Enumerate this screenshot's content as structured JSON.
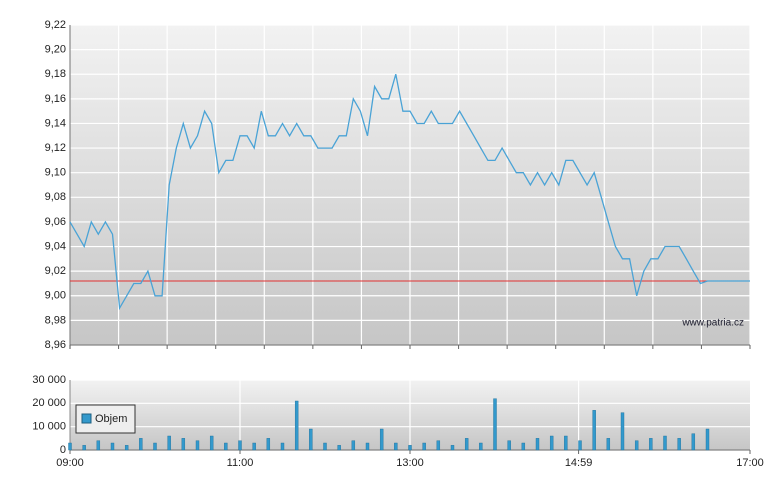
{
  "chart_data": [
    {
      "type": "line",
      "x": [
        "09:00",
        "09:05",
        "09:10",
        "09:15",
        "09:20",
        "09:25",
        "09:30",
        "09:35",
        "09:40",
        "09:45",
        "09:50",
        "09:55",
        "10:00",
        "10:05",
        "10:10",
        "10:15",
        "10:20",
        "10:25",
        "10:30",
        "10:35",
        "10:40",
        "10:45",
        "10:50",
        "10:55",
        "11:00",
        "11:05",
        "11:10",
        "11:15",
        "11:20",
        "11:25",
        "11:30",
        "11:35",
        "11:40",
        "11:45",
        "11:50",
        "11:55",
        "12:00",
        "12:05",
        "12:10",
        "12:15",
        "12:20",
        "12:25",
        "12:30",
        "12:35",
        "12:40",
        "12:45",
        "12:50",
        "12:55",
        "13:00",
        "13:05",
        "13:10",
        "13:15",
        "13:20",
        "13:25",
        "13:30",
        "13:35",
        "13:40",
        "13:45",
        "13:50",
        "13:55",
        "14:00",
        "14:05",
        "14:10",
        "14:15",
        "14:20",
        "14:25",
        "14:30",
        "14:35",
        "14:40",
        "14:45",
        "14:50",
        "14:55",
        "15:00",
        "15:05",
        "15:10",
        "15:15",
        "15:20",
        "15:25",
        "15:30",
        "15:35",
        "15:40",
        "15:45",
        "15:50",
        "15:55",
        "16:00",
        "16:05",
        "16:10",
        "16:15",
        "16:20",
        "16:25",
        "16:30",
        "17:00"
      ],
      "series": [
        {
          "color": "#4aa3d6",
          "values": [
            9.06,
            9.05,
            9.04,
            9.06,
            9.05,
            9.06,
            9.05,
            8.99,
            9.0,
            9.01,
            9.01,
            9.02,
            9.0,
            9.0,
            9.09,
            9.12,
            9.14,
            9.12,
            9.13,
            9.15,
            9.14,
            9.1,
            9.11,
            9.11,
            9.13,
            9.13,
            9.12,
            9.15,
            9.13,
            9.13,
            9.14,
            9.13,
            9.14,
            9.13,
            9.13,
            9.12,
            9.12,
            9.12,
            9.13,
            9.13,
            9.16,
            9.15,
            9.13,
            9.17,
            9.16,
            9.16,
            9.18,
            9.15,
            9.15,
            9.14,
            9.14,
            9.15,
            9.14,
            9.14,
            9.14,
            9.15,
            9.14,
            9.13,
            9.12,
            9.11,
            9.11,
            9.12,
            9.11,
            9.1,
            9.1,
            9.09,
            9.1,
            9.09,
            9.1,
            9.09,
            9.11,
            9.11,
            9.1,
            9.09,
            9.1,
            9.08,
            9.06,
            9.04,
            9.03,
            9.03,
            9.0,
            9.02,
            9.03,
            9.03,
            9.04,
            9.04,
            9.04,
            9.03,
            9.02,
            9.01,
            9.012,
            9.012
          ]
        }
      ],
      "reference_value": 9.012,
      "reference_color": "#e03030",
      "xlim": [
        "09:00",
        "17:00"
      ],
      "ylim": [
        8.96,
        9.22
      ],
      "yticks": [
        {
          "value": 8.96,
          "label": "8,96"
        },
        {
          "value": 8.98,
          "label": "8,98"
        },
        {
          "value": 9.0,
          "label": "9,00"
        },
        {
          "value": 9.02,
          "label": "9,02"
        },
        {
          "value": 9.04,
          "label": "9,04"
        },
        {
          "value": 9.06,
          "label": "9,06"
        },
        {
          "value": 9.08,
          "label": "9,08"
        },
        {
          "value": 9.1,
          "label": "9,10"
        },
        {
          "value": 9.12,
          "label": "9,12"
        },
        {
          "value": 9.14,
          "label": "9,14"
        },
        {
          "value": 9.16,
          "label": "9,16"
        },
        {
          "value": 9.18,
          "label": "9,18"
        },
        {
          "value": 9.2,
          "label": "9,20"
        },
        {
          "value": 9.22,
          "label": "9,22"
        }
      ],
      "grid": true,
      "watermark": "www.patria.cz"
    },
    {
      "type": "bar",
      "x": [
        "09:00",
        "09:10",
        "09:20",
        "09:30",
        "09:40",
        "09:50",
        "10:00",
        "10:10",
        "10:20",
        "10:30",
        "10:40",
        "10:50",
        "11:00",
        "11:10",
        "11:20",
        "11:30",
        "11:40",
        "11:50",
        "12:00",
        "12:10",
        "12:20",
        "12:30",
        "12:40",
        "12:50",
        "13:00",
        "13:10",
        "13:20",
        "13:30",
        "13:40",
        "13:50",
        "14:00",
        "14:10",
        "14:20",
        "14:30",
        "14:40",
        "14:50",
        "15:00",
        "15:10",
        "15:20",
        "15:30",
        "15:40",
        "15:50",
        "16:00",
        "16:10",
        "16:20",
        "16:30"
      ],
      "series": [
        {
          "name": "Objem",
          "color": "#3399cc",
          "values": [
            3000,
            2000,
            4000,
            3000,
            2000,
            5000,
            3000,
            6000,
            5000,
            4000,
            6000,
            3000,
            4000,
            3000,
            5000,
            3000,
            21000,
            9000,
            3000,
            2000,
            4000,
            3000,
            9000,
            3000,
            2000,
            3000,
            4000,
            2000,
            5000,
            3000,
            22000,
            4000,
            3000,
            5000,
            6000,
            6000,
            4000,
            17000,
            5000,
            16000,
            4000,
            5000,
            6000,
            5000,
            7000,
            9000
          ]
        }
      ],
      "xlim": [
        "09:00",
        "17:00"
      ],
      "xticks": [
        "09:00",
        "11:00",
        "13:00",
        "14:59",
        "17:00"
      ],
      "ylim": [
        0,
        30000
      ],
      "yticks": [
        0,
        {
          "value": 10000,
          "label": "10 000"
        },
        {
          "value": 20000,
          "label": "20 000"
        },
        {
          "value": 30000,
          "label": "30 000"
        }
      ],
      "grid": true,
      "legend": "top-left"
    }
  ]
}
